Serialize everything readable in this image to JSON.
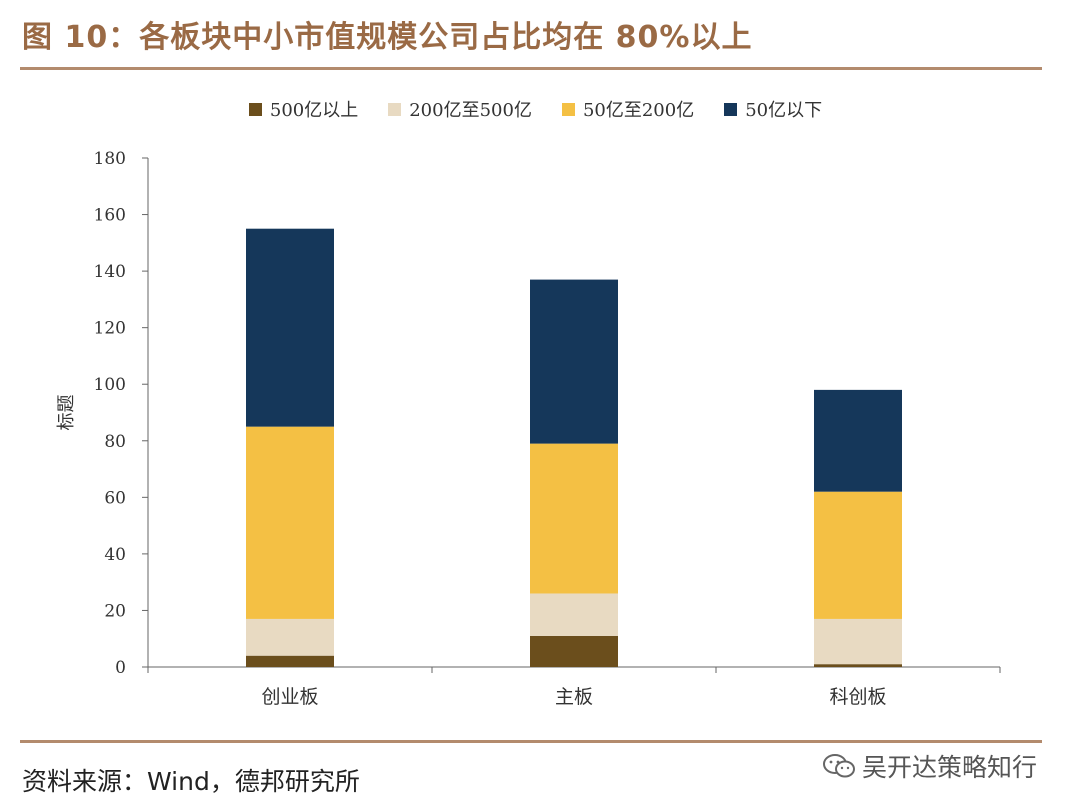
{
  "figure": {
    "title": "图 10：各板块中小市值规模公司占比均在 80%以上",
    "source": "资料来源：Wind，德邦研究所",
    "watermark": "吴开达策略知行"
  },
  "chart_data": {
    "type": "bar",
    "stacked": true,
    "categories": [
      "创业板",
      "主板",
      "科创板"
    ],
    "series": [
      {
        "name": "500亿以上",
        "color": "#6b4e1c",
        "values": [
          4,
          11,
          1
        ]
      },
      {
        "name": "200亿至500亿",
        "color": "#e8dac2",
        "values": [
          13,
          15,
          16
        ]
      },
      {
        "name": "50亿至200亿",
        "color": "#f4c044",
        "values": [
          68,
          53,
          45
        ]
      },
      {
        "name": "50亿以下",
        "color": "#15375a",
        "values": [
          70,
          58,
          36
        ]
      }
    ],
    "title": "",
    "xlabel": "",
    "ylabel": "标题",
    "ylim": [
      0,
      180
    ],
    "yticks": [
      0,
      20,
      40,
      60,
      80,
      100,
      120,
      140,
      160,
      180
    ],
    "legend_position": "top-center",
    "grid": false
  }
}
